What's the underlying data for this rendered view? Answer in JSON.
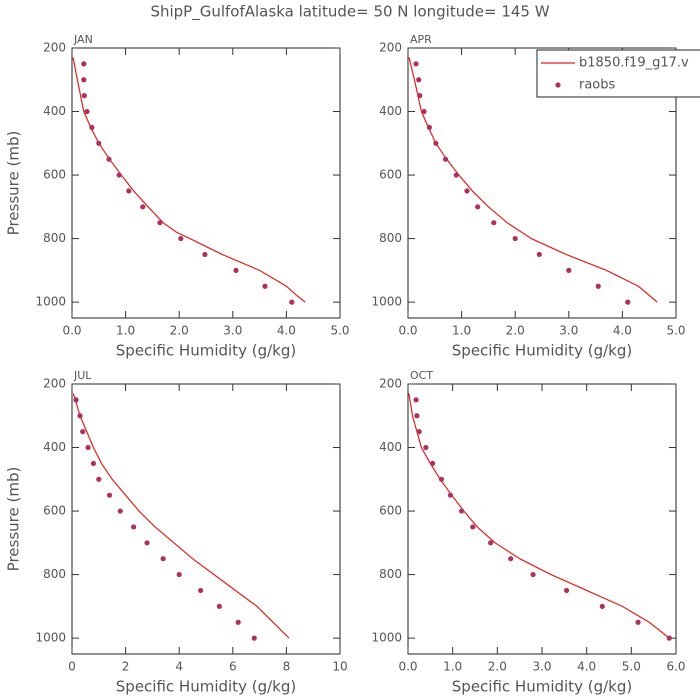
{
  "title": "ShipP_GulfofAlaska  latitude= 50 N longitude= 145 W",
  "chart_data": [
    {
      "type": "line",
      "title": "JAN",
      "xlabel": "Specific Humidity (g/kg)",
      "ylabel": "Pressure (mb)",
      "xlim": [
        0,
        5
      ],
      "xticks": [
        {
          "value": 0,
          "label": "0.0"
        },
        {
          "value": 1,
          "label": "1.0"
        },
        {
          "value": 2,
          "label": "2.0"
        },
        {
          "value": 3,
          "label": "3.0"
        },
        {
          "value": 4,
          "label": "4.0"
        },
        {
          "value": 5,
          "label": "5.0"
        }
      ],
      "ylim": [
        1050,
        200
      ],
      "yticks": [
        200,
        400,
        600,
        800,
        1000
      ],
      "series": [
        {
          "type": "line",
          "color": "#e0201c",
          "x": [
            0.02,
            0.1,
            0.22,
            0.35,
            0.5,
            0.7,
            0.92,
            1.15,
            1.42,
            1.7,
            1.95,
            2.2,
            2.8,
            3.5,
            4.0,
            4.2,
            4.35
          ],
          "y": [
            230,
            300,
            400,
            450,
            500,
            550,
            600,
            650,
            700,
            750,
            780,
            800,
            850,
            900,
            950,
            980,
            1000
          ]
        },
        {
          "type": "scatter",
          "color": "#b0305c",
          "x": [
            0.22,
            0.22,
            0.23,
            0.28,
            0.37,
            0.5,
            0.69,
            0.88,
            1.06,
            1.32,
            1.64,
            2.03,
            2.48,
            3.06,
            3.6,
            4.1
          ],
          "y": [
            250,
            300,
            350,
            400,
            450,
            500,
            550,
            600,
            650,
            700,
            750,
            800,
            850,
            900,
            950,
            1000
          ]
        }
      ]
    },
    {
      "type": "line",
      "title": "APR",
      "xlabel": "Specific Humidity (g/kg)",
      "legend": "upper right",
      "xlim": [
        0,
        5
      ],
      "xticks": [
        {
          "value": 0,
          "label": "0.0"
        },
        {
          "value": 1,
          "label": "1.0"
        },
        {
          "value": 2,
          "label": "2.0"
        },
        {
          "value": 3,
          "label": "3.0"
        },
        {
          "value": 4,
          "label": "4.0"
        },
        {
          "value": 5,
          "label": "5.0"
        }
      ],
      "ylim": [
        1050,
        200
      ],
      "yticks": [
        200,
        400,
        600,
        800,
        1000
      ],
      "series": [
        {
          "type": "line",
          "name": "b1850.f19_g17.v",
          "color": "#e0201c",
          "x": [
            0.02,
            0.12,
            0.25,
            0.38,
            0.52,
            0.72,
            0.95,
            1.2,
            1.5,
            1.85,
            2.3,
            2.95,
            3.7,
            4.3,
            4.65
          ],
          "y": [
            230,
            300,
            400,
            450,
            500,
            550,
            600,
            650,
            700,
            750,
            800,
            850,
            900,
            950,
            1000
          ]
        },
        {
          "type": "scatter",
          "name": "raobs",
          "color": "#b0305c",
          "x": [
            0.15,
            0.2,
            0.22,
            0.3,
            0.4,
            0.52,
            0.7,
            0.9,
            1.1,
            1.3,
            1.6,
            2.0,
            2.45,
            3.0,
            3.55,
            4.1
          ],
          "y": [
            250,
            300,
            350,
            400,
            450,
            500,
            550,
            600,
            650,
            700,
            750,
            800,
            850,
            900,
            950,
            1000
          ]
        }
      ]
    },
    {
      "type": "line",
      "title": "JUL",
      "xlabel": "Specific Humidity (g/kg)",
      "ylabel": "Pressure (mb)",
      "xlim": [
        0,
        10
      ],
      "xticks": [
        0,
        2,
        4,
        6,
        8,
        10
      ],
      "ylim": [
        1050,
        200
      ],
      "yticks": [
        200,
        400,
        600,
        800,
        1000
      ],
      "series": [
        {
          "type": "line",
          "color": "#e0201c",
          "x": [
            0.05,
            0.3,
            0.8,
            1.1,
            1.5,
            2.0,
            2.5,
            3.1,
            3.8,
            4.5,
            5.3,
            6.1,
            6.9,
            7.5,
            8.1
          ],
          "y": [
            230,
            300,
            400,
            450,
            500,
            550,
            600,
            650,
            700,
            750,
            800,
            850,
            900,
            950,
            1000
          ]
        },
        {
          "type": "scatter",
          "color": "#b0305c",
          "x": [
            0.15,
            0.3,
            0.4,
            0.6,
            0.8,
            1.0,
            1.4,
            1.8,
            2.3,
            2.8,
            3.4,
            4.0,
            4.8,
            5.5,
            6.2,
            6.8
          ],
          "y": [
            250,
            300,
            350,
            400,
            450,
            500,
            550,
            600,
            650,
            700,
            750,
            800,
            850,
            900,
            950,
            1000
          ]
        }
      ]
    },
    {
      "type": "line",
      "title": "OCT",
      "xlabel": "Specific Humidity (g/kg)",
      "xlim": [
        0,
        6
      ],
      "xticks": [
        {
          "value": 0,
          "label": "0.0"
        },
        {
          "value": 1,
          "label": "1.0"
        },
        {
          "value": 2,
          "label": "2.0"
        },
        {
          "value": 3,
          "label": "3.0"
        },
        {
          "value": 4,
          "label": "4.0"
        },
        {
          "value": 5,
          "label": "5.0"
        },
        {
          "value": 6,
          "label": "6.0"
        }
      ],
      "ylim": [
        1050,
        200
      ],
      "yticks": [
        200,
        400,
        600,
        800,
        1000
      ],
      "series": [
        {
          "type": "line",
          "color": "#e0201c",
          "x": [
            0.02,
            0.1,
            0.3,
            0.5,
            0.72,
            0.98,
            1.25,
            1.55,
            1.95,
            2.5,
            3.2,
            4.0,
            4.8,
            5.4,
            5.85
          ],
          "y": [
            230,
            300,
            400,
            450,
            500,
            550,
            600,
            650,
            700,
            750,
            800,
            850,
            900,
            950,
            1000
          ]
        },
        {
          "type": "scatter",
          "color": "#b0305c",
          "x": [
            0.18,
            0.2,
            0.25,
            0.4,
            0.55,
            0.75,
            0.95,
            1.2,
            1.45,
            1.85,
            2.3,
            2.8,
            3.55,
            4.35,
            5.15,
            5.85
          ],
          "y": [
            250,
            300,
            350,
            400,
            450,
            500,
            550,
            600,
            650,
            700,
            750,
            800,
            850,
            900,
            950,
            1000
          ]
        }
      ]
    }
  ]
}
